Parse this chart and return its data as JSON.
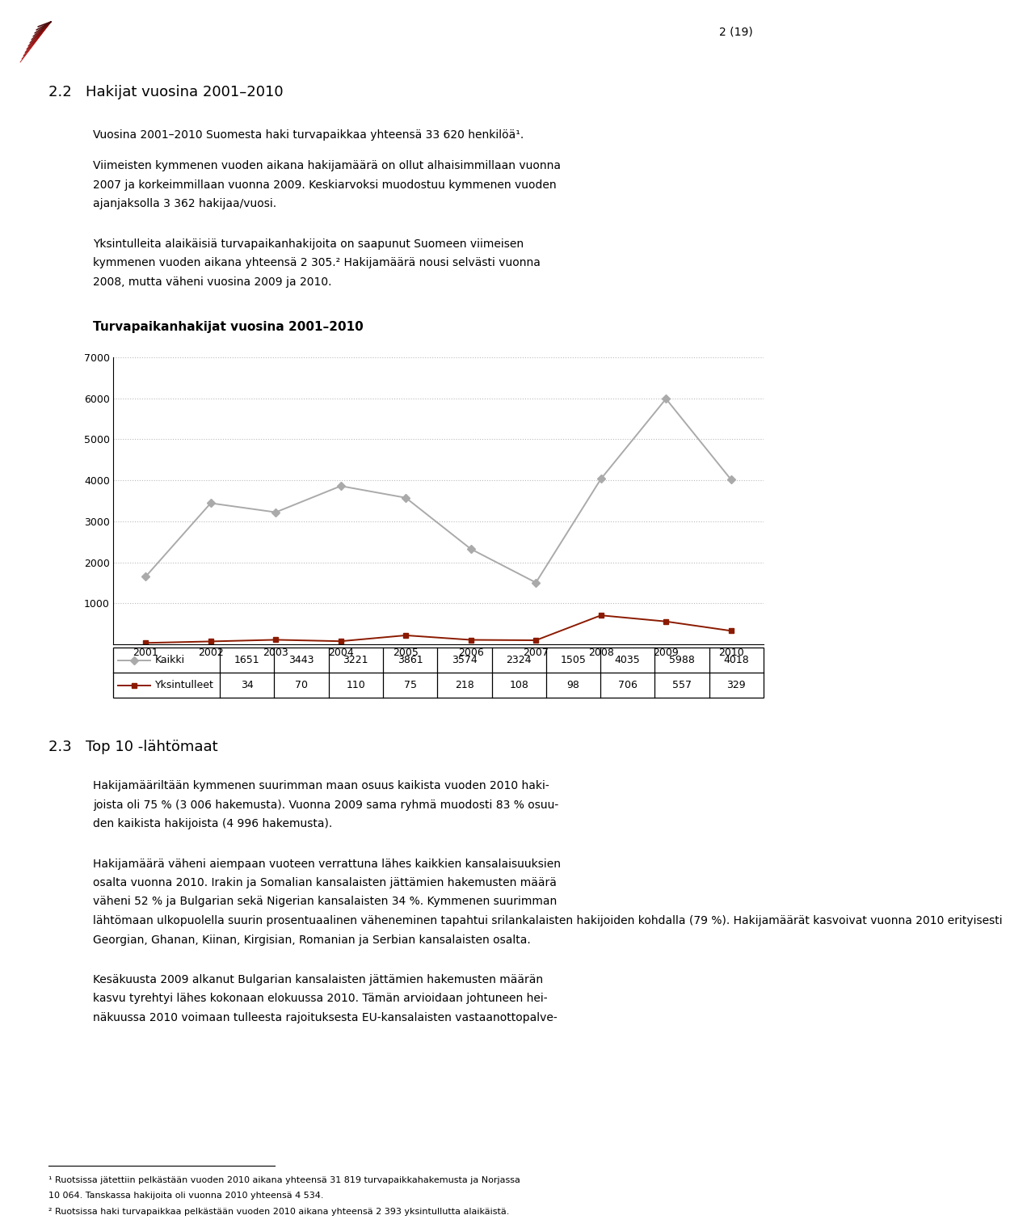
{
  "page_number": "2 (19)",
  "section_title": "2.2   Hakijat vuosina 2001–2010",
  "para1": "Vuosina 2001–2010 Suomesta haki turvapaikkaa yhteensä 33 620 henkilöä¹.",
  "para2_lines": [
    "Viimeisten kymmenen vuoden aikana hakijamäärä on ollut alhaisimmillaan vuonna",
    "2007 ja korkeimmillaan vuonna 2009. Keskiarvoksi muodostuu kymmenen vuoden",
    "ajanjaksolla 3 362 hakijaa/vuosi."
  ],
  "para3_lines": [
    "Yksintulleita alaikäisiä turvapaikanhakijoita on saapunut Suomeen viimeisen",
    "kymmenen vuoden aikana yhteensä 2 305.² Hakijamäärä nousi selvästi vuonna",
    "2008, mutta väheni vuosina 2009 ja 2010."
  ],
  "chart_title": "Turvapaikanhakijat vuosina 2001–2010",
  "years": [
    2001,
    2002,
    2003,
    2004,
    2005,
    2006,
    2007,
    2008,
    2009,
    2010
  ],
  "kaikki": [
    1651,
    3443,
    3221,
    3861,
    3574,
    2324,
    1505,
    4035,
    5988,
    4018
  ],
  "yksintulleet": [
    34,
    70,
    110,
    75,
    218,
    108,
    98,
    706,
    557,
    329
  ],
  "kaikki_color": "#aaaaaa",
  "yksintulleet_color": "#8B1A00",
  "ylim": [
    0,
    7000
  ],
  "yticks": [
    0,
    1000,
    2000,
    3000,
    4000,
    5000,
    6000,
    7000
  ],
  "section23_title": "2.3   Top 10 -lähtömaat",
  "para4_lines": [
    "Hakijamääriltään kymmenen suurimman maan osuus kaikista vuoden 2010 haki-",
    "joista oli 75 % (3 006 hakemusta). Vuonna 2009 sama ryhmä muodosti 83 % osuu-",
    "den kaikista hakijoista (4 996 hakemusta)."
  ],
  "para5_lines": [
    "Hakijamäärä väheni aiempaan vuoteen verrattuna lähes kaikkien kansalaisuuksien",
    "osalta vuonna 2010. Irakin ja Somalian kansalaisten jättämien hakemusten määrä",
    "väheni 52 % ja Bulgarian sekä Nigerian kansalaisten 34 %. Kymmenen suurimman",
    "lähtömaan ulkopuolella suurin prosentuaalinen väheneminen tapahtui srilankalaisten hakijoiden kohdalla (79 %). Hakijamäärät kasvoivat vuonna 2010 erityisesti",
    "Georgian, Ghanan, Kiinan, Kirgisian, Romanian ja Serbian kansalaisten osalta."
  ],
  "para6_lines": [
    "Kesäkuusta 2009 alkanut Bulgarian kansalaisten jättämien hakemusten määrän",
    "kasvu tyrehtyi lähes kokonaan elokuussa 2010. Tämän arvioidaan johtuneen hei-",
    "näkuussa 2010 voimaan tulleesta rajoituksesta EU-kansalaisten vastaanottopalve-"
  ],
  "footnote1a": "¹ Ruotsissa jätettiin pelkästään vuoden 2010 aikana yhteensä 31 819 turvapaikkahakemusta ja Norjassa",
  "footnote1b": "10 064. Tanskassa hakijoita oli vuonna 2010 yhteensä 4 534.",
  "footnote2": "² Ruotsissa haki turvapaikkaa pelkästään vuoden 2010 aikana yhteensä 2 393 yksintullutta alaikäistä."
}
